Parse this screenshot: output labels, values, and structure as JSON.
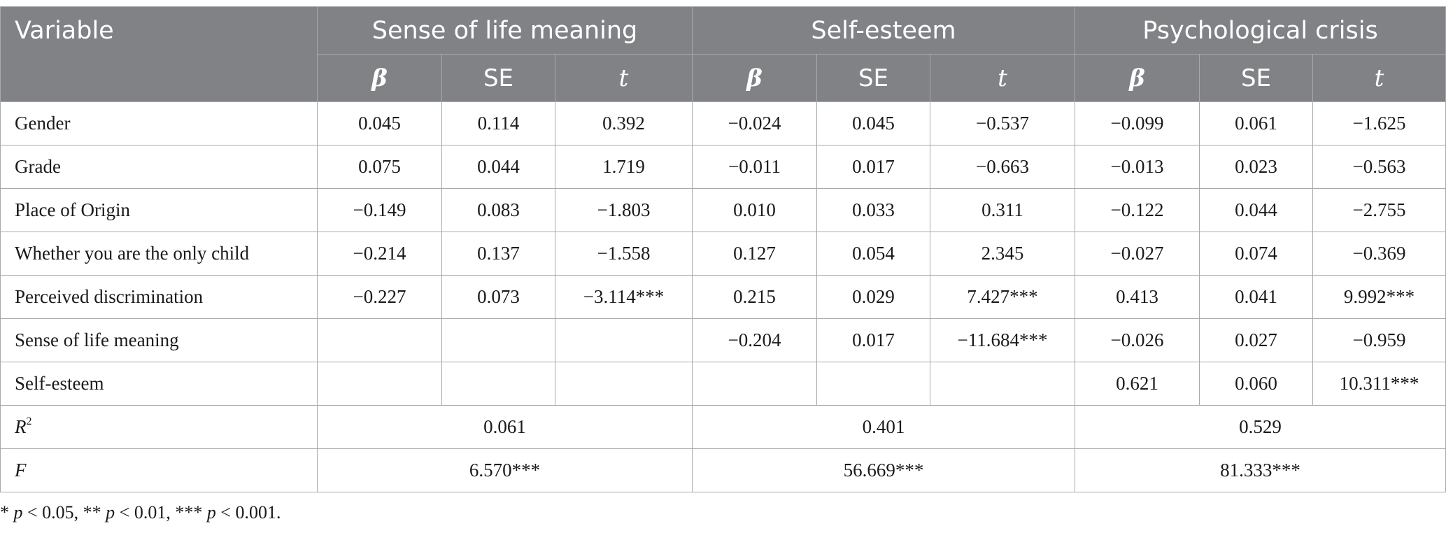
{
  "header": {
    "variable": "Variable",
    "groups": [
      "Sense of life meaning",
      "Self-esteem",
      "Psychological crisis"
    ],
    "sub": [
      "β",
      "SE",
      "t"
    ]
  },
  "rows": [
    {
      "label": "Gender",
      "cells": [
        "0.045",
        "0.114",
        "0.392",
        "−0.024",
        "0.045",
        "−0.537",
        "−0.099",
        "0.061",
        "−1.625"
      ]
    },
    {
      "label": "Grade",
      "cells": [
        "0.075",
        "0.044",
        "1.719",
        "−0.011",
        "0.017",
        "−0.663",
        "−0.013",
        "0.023",
        "−0.563"
      ]
    },
    {
      "label": "Place of Origin",
      "cells": [
        "−0.149",
        "0.083",
        "−1.803",
        "0.010",
        "0.033",
        "0.311",
        "−0.122",
        "0.044",
        "−2.755"
      ]
    },
    {
      "label": "Whether you are the only child",
      "cells": [
        "−0.214",
        "0.137",
        "−1.558",
        "0.127",
        "0.054",
        "2.345",
        "−0.027",
        "0.074",
        "−0.369"
      ]
    },
    {
      "label": "Perceived discrimination",
      "cells": [
        "−0.227",
        "0.073",
        "−3.114***",
        "0.215",
        "0.029",
        "7.427***",
        "0.413",
        "0.041",
        "9.992***"
      ]
    },
    {
      "label": "Sense of life meaning",
      "cells": [
        "",
        "",
        "",
        "−0.204",
        "0.017",
        "−11.684***",
        "−0.026",
        "0.027",
        "−0.959"
      ]
    },
    {
      "label": "Self-esteem",
      "cells": [
        "",
        "",
        "",
        "",
        "",
        "",
        "0.621",
        "0.060",
        "10.311***"
      ]
    }
  ],
  "summary": {
    "r2": {
      "label": "R",
      "sup": "2",
      "values": [
        "0.061",
        "0.401",
        "0.529"
      ]
    },
    "f": {
      "label": "F",
      "values": [
        "6.570***",
        "56.669***",
        "81.333***"
      ]
    }
  },
  "note": {
    "p1": "p",
    "t1": " < 0.05, ** ",
    "p2": "p",
    "t2": " < 0.01, *** ",
    "p3": "p",
    "t3": " < 0.001.",
    "lead": "* "
  }
}
